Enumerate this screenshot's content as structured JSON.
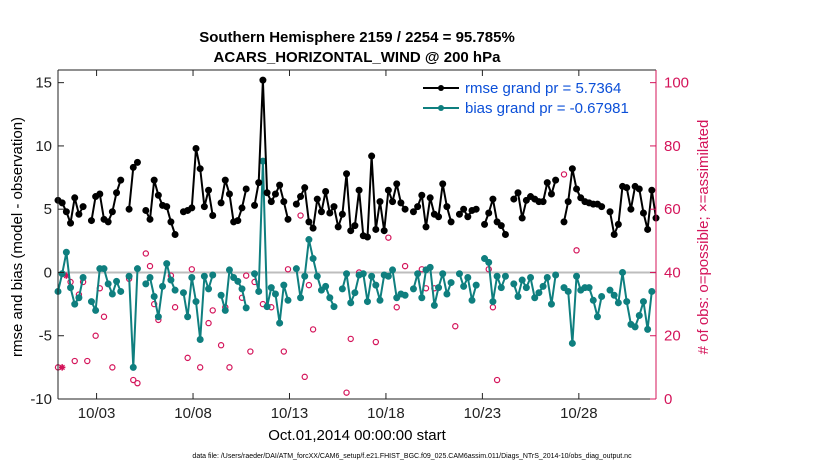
{
  "chart_data": {
    "type": "line",
    "title_line1": "Southern Hemisphere 2159 / 2254 = 95.785%",
    "title_line2": "ACARS_HORIZONTAL_WIND @ 200 hPa",
    "xlabel": "Oct.01,2014 00:00:00 start",
    "ylabel_left": "rmse and bias (model - observation)",
    "ylabel_right": "# of obs: o=possible; ×=assimilated",
    "footer": "data file: /Users/raeder/DAI/ATM_forcXX/CAM6_setup/f.e21.FHIST_BGC.f09_025.CAM6assim.011/Diags_NTrS_2014-10/obs_diag_output.nc",
    "xlim": [
      1,
      32
    ],
    "ylim_left": [
      -10,
      16
    ],
    "ylim_right": [
      0,
      104
    ],
    "x_tick_values": [
      3,
      8,
      13,
      18,
      23,
      28
    ],
    "x_tick_labels": [
      "10/03",
      "10/08",
      "10/13",
      "10/18",
      "10/23",
      "10/28"
    ],
    "y_left_ticks": [
      -10,
      -5,
      0,
      5,
      10,
      15
    ],
    "y_left_tick_labels": [
      "-10",
      "-5",
      "0",
      "5",
      "10",
      "15"
    ],
    "y_right_ticks": [
      0,
      20,
      40,
      60,
      80,
      100
    ],
    "y_right_tick_labels": [
      "0",
      "20",
      "40",
      "60",
      "80",
      "100"
    ],
    "zero_line": true,
    "legend": {
      "placement": "top-right",
      "rmse_label": "rmse grand pr = 5.7364",
      "bias_label": "bias grand pr = -0.67981"
    },
    "colors": {
      "rmse": "#000000",
      "bias": "#0f7f7f",
      "obs": "#d4145a",
      "zero": "#bdbdbd",
      "legend_text": "#0b4fd8"
    },
    "series": [
      {
        "name": "rmse",
        "values": [
          5.7,
          5.5,
          4.8,
          3.9,
          5.9,
          4.6,
          5.2,
          null,
          4.1,
          6.0,
          6.2,
          4.2,
          4.0,
          4.8,
          6.3,
          7.3,
          null,
          5.0,
          8.3,
          8.7,
          null,
          4.9,
          4.2,
          7.3,
          6.1,
          5.3,
          5.2,
          4.0,
          3.0,
          null,
          4.8,
          4.9,
          5.1,
          9.8,
          8.2,
          5.2,
          6.5,
          4.5,
          null,
          5.5,
          7.3,
          6.2,
          4.0,
          4.1,
          5.1,
          6.6,
          null,
          5.3,
          7.1,
          15.2,
          6.3,
          5.6,
          6.2,
          6.9,
          5.6,
          4.2,
          null,
          5.4,
          6.0,
          6.7,
          4.0,
          3.5,
          5.8,
          4.8,
          6.4,
          4.7,
          5.2,
          3.6,
          4.6,
          7.8,
          3.3,
          3.7,
          6.5,
          2.9,
          2.8,
          9.2,
          3.4,
          5.6,
          3.3,
          6.5,
          5.6,
          7.0,
          5.5,
          5.0,
          null,
          4.8,
          5.2,
          6.1,
          3.6,
          5.9,
          4.6,
          4.4,
          7.0,
          5.2,
          4.0,
          null,
          4.6,
          5.0,
          4.4,
          4.9,
          5.0,
          null,
          3.8,
          4.7,
          5.8,
          4.0,
          3.7,
          3.0,
          null,
          5.8,
          6.3,
          4.3,
          5.7,
          6.0,
          5.8,
          5.6,
          5.6,
          7.1,
          6.2,
          7.3,
          null,
          4.0,
          5.6,
          8.2,
          6.6,
          5.9,
          5.6,
          5.5,
          5.4,
          5.4,
          5.2,
          null,
          4.8,
          3.0,
          3.8,
          6.8,
          6.7,
          5.0,
          6.8,
          6.6,
          4.7,
          3.4,
          6.5,
          4.3
        ]
      },
      {
        "name": "bias",
        "values": [
          -1.5,
          -0.1,
          1.6,
          -1.2,
          -2.5,
          -2.0,
          -0.4,
          null,
          -2.3,
          -3.0,
          0.3,
          0.3,
          -0.9,
          -1.7,
          -0.7,
          -1.5,
          null,
          -0.3,
          -7.5,
          0.3,
          null,
          -0.9,
          -0.4,
          -1.9,
          -3.5,
          -1.1,
          0.7,
          -0.6,
          -1.4,
          null,
          -1.6,
          -3.5,
          -0.4,
          -2.3,
          -5.3,
          -0.3,
          -1.3,
          -0.2,
          null,
          -1.8,
          -3.0,
          0.2,
          -0.4,
          -0.7,
          -1.3,
          -2.8,
          null,
          -0.1,
          -1.5,
          8.8,
          -2.7,
          -1.2,
          -1.7,
          -4.0,
          -1.0,
          -2.2,
          null,
          0.3,
          -2.0,
          -0.3,
          2.6,
          1.1,
          -0.3,
          -1.4,
          -1.1,
          -2.0,
          -2.7,
          null,
          -1.3,
          -0.1,
          -2.4,
          -1.6,
          -0.2,
          -0.1,
          -2.3,
          -0.3,
          -1.0,
          -2.2,
          -0.2,
          -0.3,
          0.2,
          -2.0,
          -1.7,
          -1.8,
          null,
          -1.3,
          -0.1,
          -2.0,
          0.2,
          0.4,
          -2.6,
          -1.2,
          -0.1,
          -1.7,
          -0.8,
          null,
          -0.1,
          -1.1,
          -0.4,
          -2.2,
          -1.0,
          null,
          1.1,
          0.8,
          -2.3,
          -0.3,
          -1.2,
          -0.3,
          null,
          -0.9,
          -1.9,
          -0.6,
          -1.2,
          -0.4,
          -2.0,
          -1.6,
          -1.1,
          -0.4,
          -2.5,
          -0.2,
          null,
          -1.2,
          -1.5,
          -5.6,
          -0.3,
          -1.4,
          -1.2,
          -1.2,
          -2.2,
          -3.5,
          -1.9,
          null,
          -1.4,
          -1.8,
          -2.4,
          0.0,
          -2.3,
          -4.1,
          -4.3,
          -3.4,
          -2.3,
          -4.5,
          -1.5
        ]
      },
      {
        "name": "obs_possible",
        "values": [
          10,
          null,
          null,
          37,
          12,
          33,
          37,
          12,
          null,
          20,
          35,
          26,
          null,
          10,
          null,
          null,
          null,
          38,
          6,
          5,
          null,
          46,
          42,
          30,
          25,
          null,
          null,
          39,
          29,
          null,
          null,
          13,
          41,
          null,
          10,
          null,
          24,
          28,
          null,
          17,
          29,
          10,
          null,
          null,
          32,
          39,
          15,
          37,
          null,
          30,
          null,
          29,
          null,
          24,
          15,
          41,
          null,
          null,
          58,
          7,
          36,
          22,
          null,
          null,
          null,
          null,
          null,
          null,
          null,
          2,
          19,
          null,
          40,
          null,
          null,
          null,
          18,
          null,
          null,
          51,
          null,
          29,
          null,
          42,
          null,
          null,
          null,
          41,
          35,
          null,
          35,
          null,
          null,
          null,
          null,
          23,
          null,
          null,
          null,
          null,
          null,
          null,
          null,
          41,
          29,
          6,
          null,
          null,
          null,
          null,
          null,
          null,
          null,
          null,
          null,
          null,
          null,
          null,
          null,
          null,
          null,
          71,
          null,
          null,
          47,
          null,
          null,
          null,
          null,
          null,
          null,
          null,
          null,
          null,
          null,
          null,
          null,
          null,
          null,
          null,
          null,
          null,
          null,
          null,
          null
        ]
      },
      {
        "name": "obs_assimilated",
        "values": [
          null,
          10,
          39,
          null,
          null,
          null,
          null,
          null,
          null,
          null,
          null,
          null,
          null,
          null,
          null,
          null,
          null,
          null,
          null,
          null,
          null,
          null,
          null,
          null,
          null,
          null,
          null,
          null,
          null,
          null,
          null,
          null,
          null,
          null,
          null,
          null,
          null,
          null,
          null,
          null,
          null,
          null,
          null,
          null,
          null,
          null,
          null,
          null,
          null,
          null,
          null,
          null,
          null,
          null,
          null,
          null,
          null,
          null,
          null,
          null,
          null,
          null,
          null,
          null,
          null,
          null,
          null,
          null,
          null,
          null,
          null,
          null,
          null,
          null,
          null,
          null,
          null,
          null,
          null,
          null,
          null,
          null,
          null,
          null,
          null,
          null,
          null,
          null,
          null,
          null,
          null,
          null,
          null,
          null,
          null,
          null,
          null,
          null,
          null,
          null,
          null,
          null,
          null,
          null,
          null,
          null,
          null,
          null,
          null,
          null,
          null,
          null,
          null,
          null,
          null,
          null,
          null,
          null,
          null,
          null,
          null,
          null,
          null,
          null,
          null,
          null,
          null,
          null,
          null,
          null,
          null,
          null,
          null,
          null,
          null,
          null,
          null,
          null,
          null,
          null,
          null,
          null,
          null,
          null,
          null
        ]
      }
    ]
  }
}
